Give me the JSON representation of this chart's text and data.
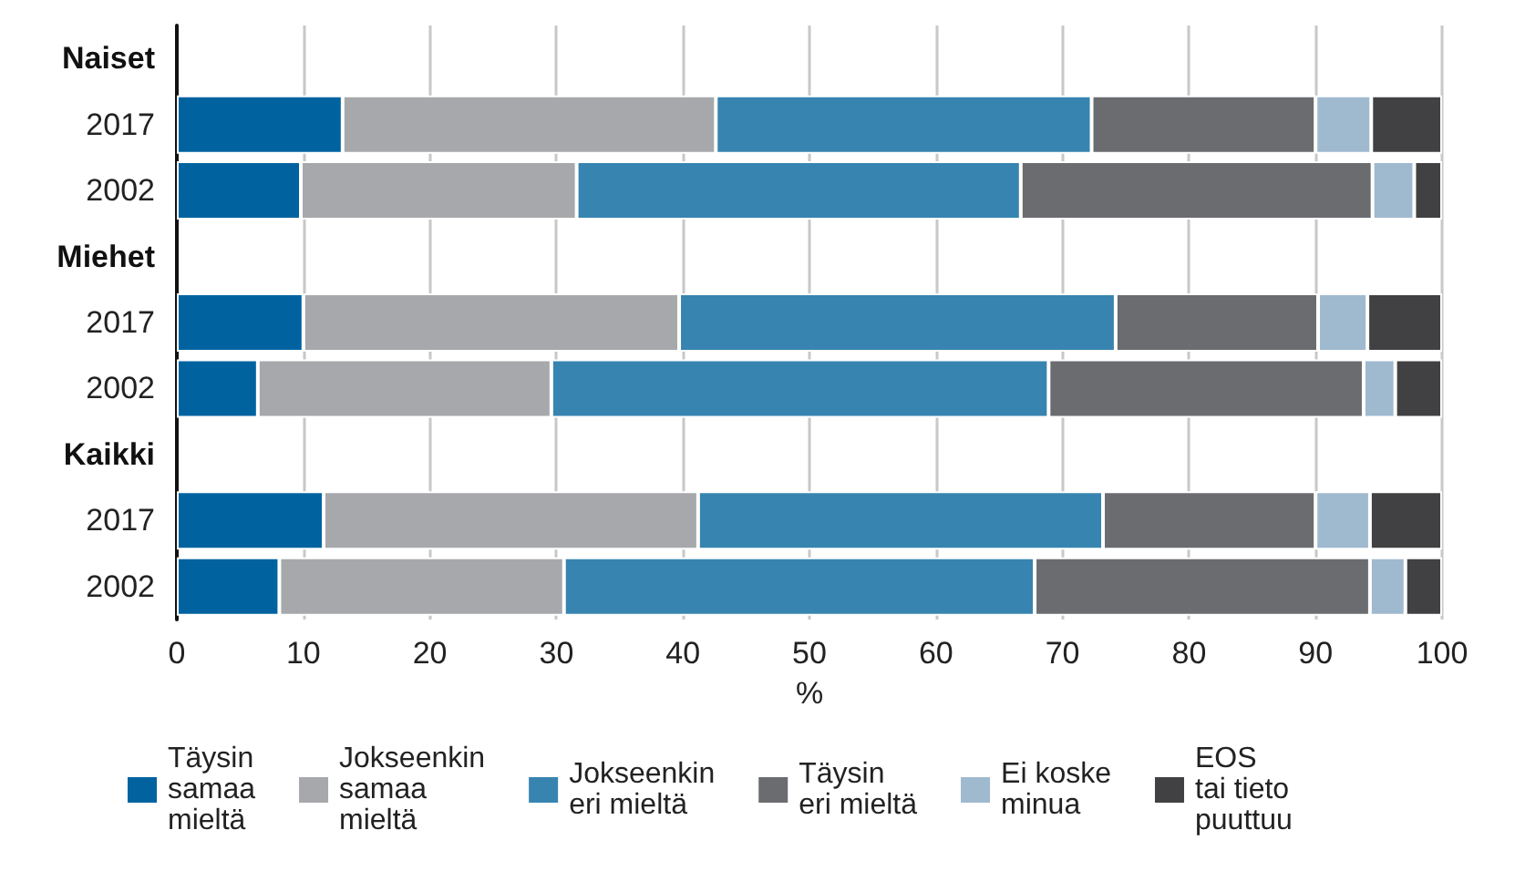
{
  "chart_data": {
    "type": "bar",
    "orientation": "horizontal",
    "stacked": true,
    "xlabel": "%",
    "categories": [
      "Naiset",
      "2017",
      "2002",
      "Miehet",
      "2017",
      "2002",
      "Kaikki",
      "2017",
      "2002"
    ],
    "series": [
      {
        "name": "Täysin\nsamaa\nmieltä",
        "color": "#0063a0",
        "values": [
          null,
          13.1,
          9.8,
          null,
          10.0,
          6.4,
          null,
          11.6,
          8.1
        ]
      },
      {
        "name": "Jokseenkin\nsamaa\nmieltä",
        "color": "#a7a8ab",
        "values": [
          null,
          29.5,
          21.8,
          null,
          29.7,
          23.2,
          null,
          29.6,
          22.5
        ]
      },
      {
        "name": "Jokseenkin\neri mieltä",
        "color": "#3784b0",
        "values": [
          null,
          29.7,
          35.1,
          null,
          34.5,
          39.3,
          null,
          32.0,
          37.2
        ]
      },
      {
        "name": "Täysin\neri mieltä",
        "color": "#6b6c70",
        "values": [
          null,
          17.7,
          27.8,
          null,
          16.0,
          24.9,
          null,
          16.8,
          26.5
        ]
      },
      {
        "name": "Ei koske\nminua",
        "color": "#9fb9cf",
        "values": [
          null,
          4.4,
          3.3,
          null,
          3.9,
          2.5,
          null,
          4.3,
          2.8
        ]
      },
      {
        "name": "EOS\ntai tieto\npuuttuu",
        "color": "#414143",
        "values": [
          null,
          5.6,
          2.2,
          null,
          5.9,
          3.7,
          null,
          5.7,
          2.9
        ]
      }
    ],
    "xlim": [
      0,
      100
    ],
    "xticks": [
      0,
      10,
      20,
      30,
      40,
      50,
      60,
      70,
      80,
      90,
      100
    ],
    "grid": "x",
    "legend": "bottom"
  }
}
